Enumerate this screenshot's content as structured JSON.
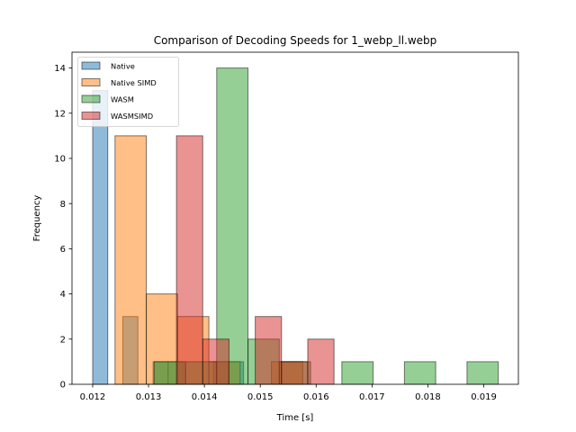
{
  "chart_data": {
    "type": "bar",
    "subtype": "histogram",
    "title": "Comparison of Decoding Speeds for 1_webp_ll.webp",
    "xlabel": "Time [s]",
    "ylabel": "Frequency",
    "xlim": [
      0.01163,
      0.01962
    ],
    "ylim": [
      0,
      14.7
    ],
    "xticks": [
      0.012,
      0.013,
      0.014,
      0.015,
      0.016,
      0.017,
      0.018,
      0.019
    ],
    "yticks": [
      0,
      2,
      4,
      6,
      8,
      10,
      12,
      14
    ],
    "grid": false,
    "legend_position": "top-left",
    "series": [
      {
        "name": "Native",
        "color": "#1f77b4",
        "bins": [
          {
            "x0": 0.012,
            "x1": 0.01227,
            "count": 13
          },
          {
            "x0": 0.01227,
            "x1": 0.01254,
            "count": 0
          },
          {
            "x0": 0.01254,
            "x1": 0.01281,
            "count": 3
          },
          {
            "x0": 0.01281,
            "x1": 0.01308,
            "count": 0
          },
          {
            "x0": 0.01308,
            "x1": 0.01335,
            "count": 1
          },
          {
            "x0": 0.01335,
            "x1": 0.01362,
            "count": 1
          },
          {
            "x0": 0.01362,
            "x1": 0.01389,
            "count": 0
          },
          {
            "x0": 0.01389,
            "x1": 0.01416,
            "count": 0
          },
          {
            "x0": 0.01416,
            "x1": 0.01443,
            "count": 1
          },
          {
            "x0": 0.01443,
            "x1": 0.0147,
            "count": 1
          }
        ]
      },
      {
        "name": "Native SIMD",
        "color": "#ff7f0e",
        "bins": [
          {
            "x0": 0.0124,
            "x1": 0.01296,
            "count": 11
          },
          {
            "x0": 0.01296,
            "x1": 0.01352,
            "count": 4
          },
          {
            "x0": 0.01352,
            "x1": 0.01408,
            "count": 3
          },
          {
            "x0": 0.01408,
            "x1": 0.01464,
            "count": 1
          },
          {
            "x0": 0.01464,
            "x1": 0.0152,
            "count": 0
          },
          {
            "x0": 0.0152,
            "x1": 0.01576,
            "count": 1
          }
        ]
      },
      {
        "name": "WASM",
        "color": "#2ca02c",
        "bins": [
          {
            "x0": 0.0131,
            "x1": 0.01366,
            "count": 1
          },
          {
            "x0": 0.01366,
            "x1": 0.01422,
            "count": 1
          },
          {
            "x0": 0.01422,
            "x1": 0.01478,
            "count": 14
          },
          {
            "x0": 0.01478,
            "x1": 0.01534,
            "count": 2
          },
          {
            "x0": 0.01534,
            "x1": 0.0159,
            "count": 1
          },
          {
            "x0": 0.0159,
            "x1": 0.01646,
            "count": 0
          },
          {
            "x0": 0.01646,
            "x1": 0.01702,
            "count": 1
          },
          {
            "x0": 0.01702,
            "x1": 0.01758,
            "count": 0
          },
          {
            "x0": 0.01758,
            "x1": 0.01814,
            "count": 1
          },
          {
            "x0": 0.01814,
            "x1": 0.0187,
            "count": 0
          },
          {
            "x0": 0.0187,
            "x1": 0.01926,
            "count": 1
          }
        ]
      },
      {
        "name": "WASMSIMD",
        "color": "#d62728",
        "bins": [
          {
            "x0": 0.0135,
            "x1": 0.01397,
            "count": 11
          },
          {
            "x0": 0.01397,
            "x1": 0.01444,
            "count": 2
          },
          {
            "x0": 0.01444,
            "x1": 0.01491,
            "count": 0
          },
          {
            "x0": 0.01491,
            "x1": 0.01538,
            "count": 3
          },
          {
            "x0": 0.01538,
            "x1": 0.01585,
            "count": 1
          },
          {
            "x0": 0.01585,
            "x1": 0.01632,
            "count": 2
          }
        ]
      }
    ]
  }
}
